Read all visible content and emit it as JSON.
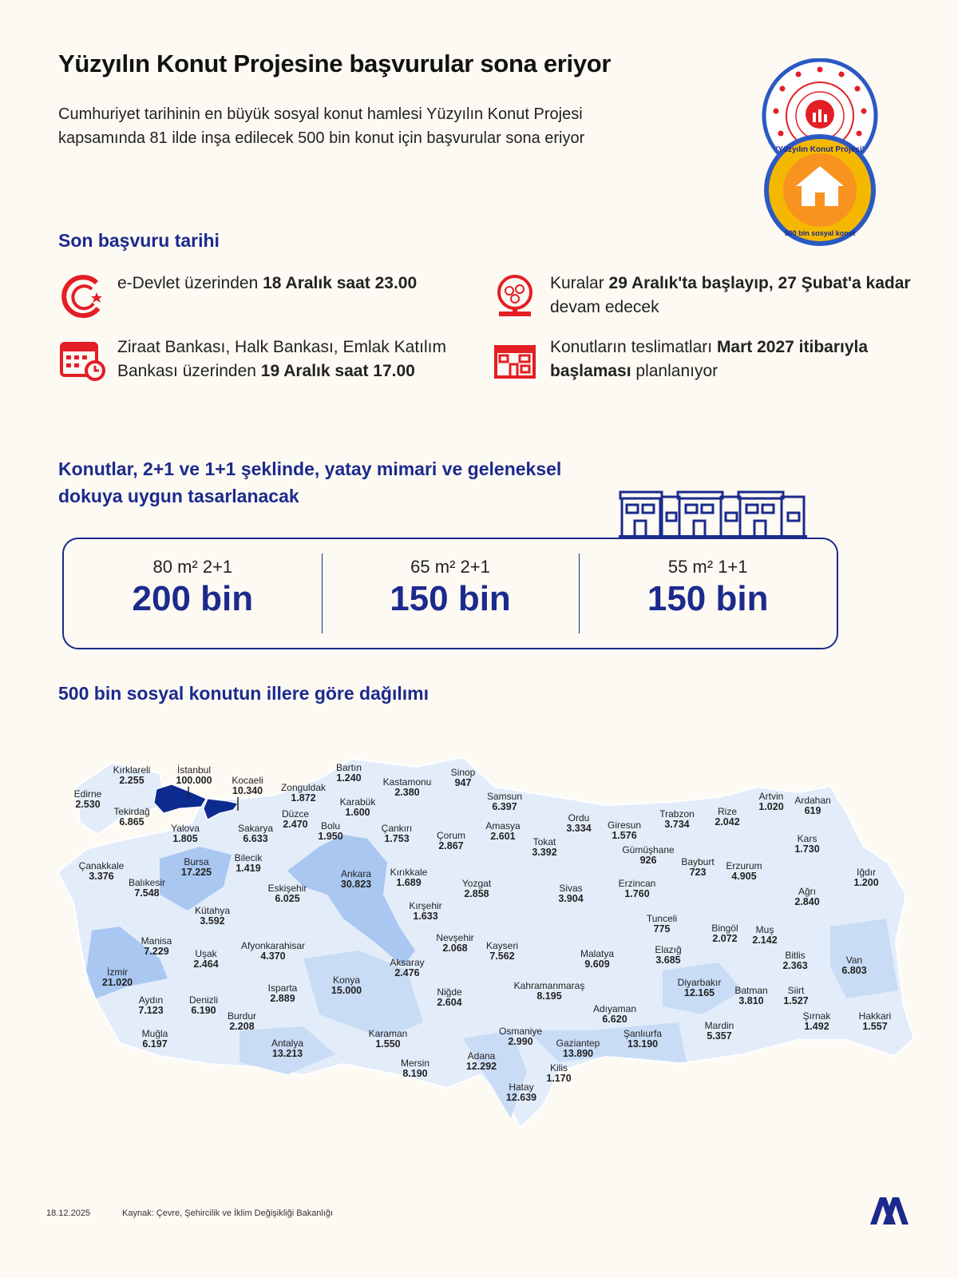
{
  "header": {
    "title": "Yüzyılın Konut Projesine başvurular sona eriyor",
    "intro": "Cumhuriyet tarihinin en büyük sosyal konut hamlesi Yüzyılın Konut Projesi kapsamında 81 ilde inşa edilecek 500 bin konut için başvurular sona eriyor",
    "logo_ministry": "Çevre, Şehircilik ve İklim Değişikliği Bakanlığı",
    "logo_project_top": "'Yüzyılın Konut Projesi'",
    "logo_project_bottom": "500 bin sosyal konut"
  },
  "deadline": {
    "heading": "Son başvuru tarihi",
    "items": [
      {
        "icon": "e-devlet-icon",
        "pre": "e-Devlet üzerinden ",
        "bold": "18 Aralık saat 23.00",
        "post": ""
      },
      {
        "icon": "calendar-clock-icon",
        "pre": "Ziraat Bankası, Halk Bankası, Emlak Katılım Bankası üzerinden ",
        "bold": "19 Aralık saat 17.00",
        "post": ""
      },
      {
        "icon": "lottery-drum-icon",
        "pre": "Kuralar ",
        "bold": "29 Aralık'ta başlayıp, 27 Şubat'a kadar",
        "post": " devam edecek"
      },
      {
        "icon": "building-icon",
        "pre": "Konutların teslimatları ",
        "bold": "Mart 2027 itibarıyla başlaması",
        "post": " planlanıyor"
      }
    ]
  },
  "types": {
    "heading": "Konutlar, 2+1 ve 1+1 şeklinde, yatay mimari ve geleneksel dokuya uygun tasarlanacak",
    "cells": [
      {
        "label": "80 m² 2+1",
        "value": "200 bin"
      },
      {
        "label": "65 m² 2+1",
        "value": "150 bin"
      },
      {
        "label": "55 m² 1+1",
        "value": "150 bin"
      }
    ]
  },
  "map": {
    "heading": "500 bin sosyal konutun illere göre dağılımı",
    "colors": {
      "highest": "#0d2a8f",
      "high": "#8cb4ec",
      "mid": "#c9dcf5",
      "low": "#e3edfa",
      "border": "#ffffff"
    },
    "provinces": [
      {
        "name": "Kırklareli",
        "value": "2.255"
      },
      {
        "name": "İstanbul",
        "value": "100.000"
      },
      {
        "name": "Kocaeli",
        "value": "10.340"
      },
      {
        "name": "Edirne",
        "value": "2.530"
      },
      {
        "name": "Tekirdağ",
        "value": "6.865"
      },
      {
        "name": "Bartın",
        "value": "1.240"
      },
      {
        "name": "Kastamonu",
        "value": "2.380"
      },
      {
        "name": "Sinop",
        "value": "947"
      },
      {
        "name": "Zonguldak",
        "value": "1.872"
      },
      {
        "name": "Karabük",
        "value": "1.600"
      },
      {
        "name": "Düzce",
        "value": "2.470"
      },
      {
        "name": "Yalova",
        "value": "1.805"
      },
      {
        "name": "Sakarya",
        "value": "6.633"
      },
      {
        "name": "Bolu",
        "value": "1.950"
      },
      {
        "name": "Çankırı",
        "value": "1.753"
      },
      {
        "name": "Samsun",
        "value": "6.397"
      },
      {
        "name": "Amasya",
        "value": "2.601"
      },
      {
        "name": "Ordu",
        "value": "3.334"
      },
      {
        "name": "Çorum",
        "value": "2.867"
      },
      {
        "name": "Tokat",
        "value": "3.392"
      },
      {
        "name": "Giresun",
        "value": "1.576"
      },
      {
        "name": "Trabzon",
        "value": "3.734"
      },
      {
        "name": "Rize",
        "value": "2.042"
      },
      {
        "name": "Artvin",
        "value": "1.020"
      },
      {
        "name": "Ardahan",
        "value": "619"
      },
      {
        "name": "Kars",
        "value": "1.730"
      },
      {
        "name": "Gümüşhane",
        "value": "926"
      },
      {
        "name": "Bayburt",
        "value": "723"
      },
      {
        "name": "Erzurum",
        "value": "4.905"
      },
      {
        "name": "Iğdır",
        "value": "1.200"
      },
      {
        "name": "Ağrı",
        "value": "2.840"
      },
      {
        "name": "Erzincan",
        "value": "1.760"
      },
      {
        "name": "Sivas",
        "value": "3.904"
      },
      {
        "name": "Yozgat",
        "value": "2.858"
      },
      {
        "name": "Çanakkale",
        "value": "3.376"
      },
      {
        "name": "Bursa",
        "value": "17.225"
      },
      {
        "name": "Bilecik",
        "value": "1.419"
      },
      {
        "name": "Balıkesir",
        "value": "7.548"
      },
      {
        "name": "Ankara",
        "value": "30.823"
      },
      {
        "name": "Kırıkkale",
        "value": "1.689"
      },
      {
        "name": "Eskişehir",
        "value": "6.025"
      },
      {
        "name": "Kütahya",
        "value": "3.592"
      },
      {
        "name": "Kırşehir",
        "value": "1.633"
      },
      {
        "name": "Tunceli",
        "value": "775"
      },
      {
        "name": "Bingöl",
        "value": "2.072"
      },
      {
        "name": "Muş",
        "value": "2.142"
      },
      {
        "name": "Manisa",
        "value": "7.229"
      },
      {
        "name": "Uşak",
        "value": "2.464"
      },
      {
        "name": "Afyonkarahisar",
        "value": "4.370"
      },
      {
        "name": "Nevşehir",
        "value": "2.068"
      },
      {
        "name": "Kayseri",
        "value": "7.562"
      },
      {
        "name": "Malatya",
        "value": "9.609"
      },
      {
        "name": "Elazığ",
        "value": "3.685"
      },
      {
        "name": "Bitlis",
        "value": "2.363"
      },
      {
        "name": "Van",
        "value": "6.803"
      },
      {
        "name": "Aksaray",
        "value": "2.476"
      },
      {
        "name": "İzmir",
        "value": "21.020"
      },
      {
        "name": "Konya",
        "value": "15.000"
      },
      {
        "name": "Isparta",
        "value": "2.889"
      },
      {
        "name": "Niğde",
        "value": "2.604"
      },
      {
        "name": "Kahramanmaraş",
        "value": "8.195"
      },
      {
        "name": "Diyarbakır",
        "value": "12.165"
      },
      {
        "name": "Batman",
        "value": "3.810"
      },
      {
        "name": "Siirt",
        "value": "1.527"
      },
      {
        "name": "Adıyaman",
        "value": "6.620"
      },
      {
        "name": "Aydın",
        "value": "7.123"
      },
      {
        "name": "Denizli",
        "value": "6.190"
      },
      {
        "name": "Burdur",
        "value": "2.208"
      },
      {
        "name": "Muğla",
        "value": "6.197"
      },
      {
        "name": "Şırnak",
        "value": "1.492"
      },
      {
        "name": "Hakkari",
        "value": "1.557"
      },
      {
        "name": "Mardin",
        "value": "5.357"
      },
      {
        "name": "Antalya",
        "value": "13.213"
      },
      {
        "name": "Karaman",
        "value": "1.550"
      },
      {
        "name": "Osmaniye",
        "value": "2.990"
      },
      {
        "name": "Şanlıurfa",
        "value": "13.190"
      },
      {
        "name": "Gaziantep",
        "value": "13.890"
      },
      {
        "name": "Adana",
        "value": "12.292"
      },
      {
        "name": "Mersin",
        "value": "8.190"
      },
      {
        "name": "Kilis",
        "value": "1.170"
      },
      {
        "name": "Hatay",
        "value": "12.639"
      }
    ]
  },
  "footer": {
    "date": "18.12.2025",
    "source": "Kaynak: Çevre, Şehircilik ve İklim Değişikliği Bakanlığı",
    "agency_logo": "AA"
  }
}
